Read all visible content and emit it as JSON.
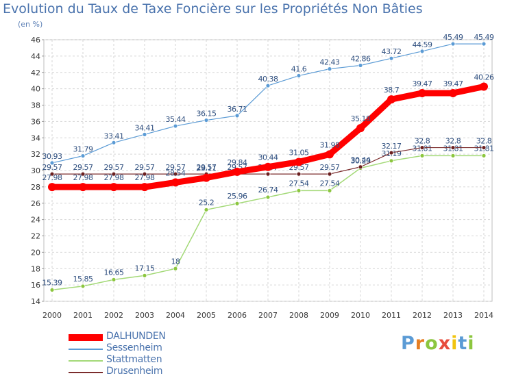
{
  "title": "Evolution du Taux de Taxe Foncière sur les Propriétés Non Bâties",
  "subtitle": "(en %)",
  "logo": {
    "text": "Proxiti",
    "letters": [
      "P",
      "r",
      "o",
      "x",
      "i",
      "t",
      "i"
    ],
    "colors": [
      "#5b9bd5",
      "#e67e22",
      "#8cc63f",
      "#e74c3c",
      "#f1c40f",
      "#5b9bd5",
      "#8cc63f"
    ]
  },
  "chart_data": {
    "type": "line",
    "x": [
      2000,
      2001,
      2002,
      2003,
      2004,
      2005,
      2006,
      2007,
      2008,
      2009,
      2010,
      2011,
      2012,
      2013,
      2014
    ],
    "ylim": [
      14,
      46
    ],
    "yticks": [
      14,
      16,
      18,
      20,
      22,
      24,
      26,
      28,
      30,
      32,
      34,
      36,
      38,
      40,
      42,
      44,
      46
    ],
    "grid": true,
    "legend_position": "bottom-left",
    "series": [
      {
        "name": "Sessenheim",
        "color": "#5b9bd5",
        "values": [
          30.93,
          31.79,
          33.41,
          34.41,
          35.44,
          36.15,
          36.71,
          40.38,
          41.6,
          42.43,
          42.86,
          43.72,
          44.59,
          45.49,
          45.49
        ],
        "labels": [
          "30.93",
          "31.79",
          "33.41",
          "34.41",
          "35.44",
          "36.15",
          "36.71",
          "40.38",
          "41.6",
          "42.43",
          "42.86",
          "43.72",
          "44.59",
          "45.49",
          "45.49"
        ]
      },
      {
        "name": "Stattmatten",
        "color": "#a3d977",
        "values": [
          15.39,
          15.85,
          16.65,
          17.15,
          18,
          25.2,
          25.96,
          26.74,
          27.54,
          27.54,
          30.29,
          31.19,
          31.81,
          31.81,
          31.81
        ],
        "labels": [
          "15.39",
          "15.85",
          "16.65",
          "17.15",
          "18",
          "25.2",
          "25.96",
          "26.74",
          "27.54",
          "27.54",
          "30.29",
          "31.19",
          "31.81",
          "31.81",
          "31.81"
        ]
      },
      {
        "name": "Drusenheim",
        "color": "#7b2c2c",
        "values": [
          29.57,
          29.57,
          29.57,
          29.57,
          29.57,
          29.57,
          29.57,
          29.57,
          29.57,
          29.57,
          30.44,
          32.17,
          32.8,
          32.8,
          32.8
        ],
        "labels": [
          "29.57",
          "29.57",
          "29.57",
          "29.57",
          "29.57",
          "29.57",
          "29.57",
          "29.57",
          "29.57",
          "29.57",
          "30.44",
          "32.17",
          "32.8",
          "32.8",
          "32.8"
        ]
      },
      {
        "name": "DALHUNDEN",
        "color": "#ff0000",
        "values": [
          27.98,
          27.98,
          27.98,
          27.98,
          28.54,
          29.11,
          29.84,
          30.44,
          31.05,
          31.98,
          35.18,
          38.7,
          39.47,
          39.47,
          40.26
        ],
        "labels": [
          "27.98",
          "27.98",
          "27.98",
          "27.98",
          "28.54",
          "29.11",
          "29.84",
          "30.44",
          "31.05",
          "31.98",
          "35.18",
          "38.7",
          "39.47",
          "39.47",
          "40.26"
        ]
      }
    ],
    "legend": [
      "DALHUNDEN",
      "Sessenheim",
      "Stattmatten",
      "Drusenheim"
    ]
  }
}
